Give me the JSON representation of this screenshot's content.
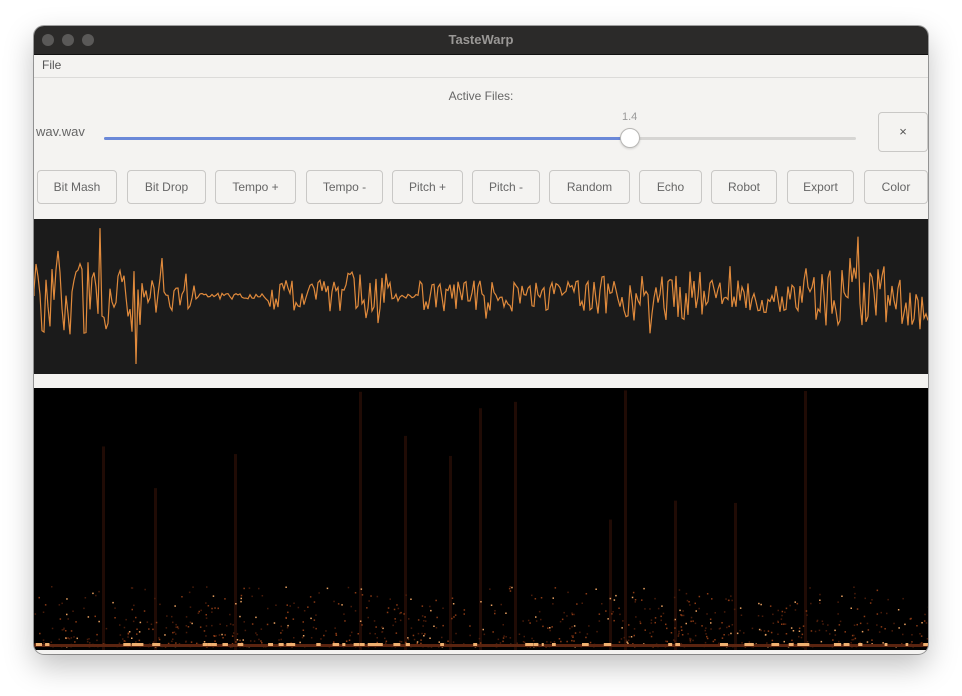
{
  "window": {
    "title": "TasteWarp"
  },
  "menu": {
    "items": [
      "File"
    ]
  },
  "active_files_label": "Active Files:",
  "file": {
    "name": "wav.wav",
    "slider_value": "1.4",
    "slider_fraction": 0.699,
    "close_label": "×"
  },
  "buttons": [
    "Bit Mash",
    "Bit Drop",
    "Tempo +",
    "Tempo -",
    "Pitch +",
    "Pitch -",
    "Random",
    "Echo",
    "Robot",
    "Export",
    "Color"
  ],
  "colors": {
    "accent": "#6a88d8",
    "waveform": "#e08a3c",
    "waveform_bg": "#1b1b1b",
    "spectrogram_bg": "#000000"
  },
  "icons": {
    "close": "close-icon"
  }
}
